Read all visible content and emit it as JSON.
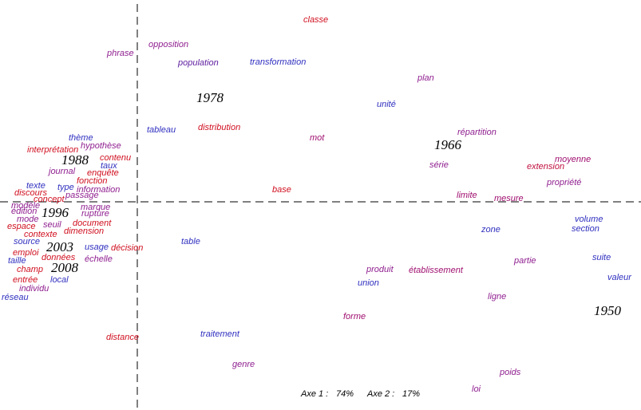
{
  "words": [
    {
      "label": "classe",
      "color": "#d01020"
    },
    {
      "label": "opposition",
      "color": "#902090"
    },
    {
      "label": "phrase",
      "color": "#902090"
    },
    {
      "label": "population",
      "color": "#6020a0"
    },
    {
      "label": "transformation",
      "color": "#3030c0"
    },
    {
      "label": "plan",
      "color": "#902090"
    },
    {
      "label": "unité",
      "color": "#3030c0"
    },
    {
      "label": "tableau",
      "color": "#3030c0"
    },
    {
      "label": "distribution",
      "color": "#d01020"
    },
    {
      "label": "mot",
      "color": "#a01070"
    },
    {
      "label": "répartition",
      "color": "#902090"
    },
    {
      "label": "thème",
      "color": "#3030c0"
    },
    {
      "label": "hypothèse",
      "color": "#902090"
    },
    {
      "label": "interprétation",
      "color": "#d01020"
    },
    {
      "label": "contenu",
      "color": "#d01020"
    },
    {
      "label": "taux",
      "color": "#3030c0"
    },
    {
      "label": "moyenne",
      "color": "#a01070"
    },
    {
      "label": "série",
      "color": "#902090"
    },
    {
      "label": "extension",
      "color": "#c01040"
    },
    {
      "label": "journal",
      "color": "#902090"
    },
    {
      "label": "enquête",
      "color": "#d01020"
    },
    {
      "label": "fonction",
      "color": "#d01020"
    },
    {
      "label": "propriété",
      "color": "#902090"
    },
    {
      "label": "texte",
      "color": "#3030c0"
    },
    {
      "label": "type",
      "color": "#3030c0"
    },
    {
      "label": "information",
      "color": "#902090"
    },
    {
      "label": "base",
      "color": "#d01020"
    },
    {
      "label": "discours",
      "color": "#d01020"
    },
    {
      "label": "passage",
      "color": "#902090"
    },
    {
      "label": "limite",
      "color": "#a01070"
    },
    {
      "label": "concept",
      "color": "#d01020"
    },
    {
      "label": "mesure",
      "color": "#a01070"
    },
    {
      "label": "modèle",
      "color": "#902090"
    },
    {
      "label": "marque",
      "color": "#902090"
    },
    {
      "label": "édition",
      "color": "#902090"
    },
    {
      "label": "rupture",
      "color": "#902090"
    },
    {
      "label": "mode",
      "color": "#902090"
    },
    {
      "label": "volume",
      "color": "#3030c0"
    },
    {
      "label": "document",
      "color": "#d01020"
    },
    {
      "label": "seuil",
      "color": "#902090"
    },
    {
      "label": "espace",
      "color": "#d01020"
    },
    {
      "label": "zone",
      "color": "#3030c0"
    },
    {
      "label": "dimension",
      "color": "#d01020"
    },
    {
      "label": "section",
      "color": "#3030c0"
    },
    {
      "label": "contexte",
      "color": "#d01020"
    },
    {
      "label": "table",
      "color": "#3030c0"
    },
    {
      "label": "source",
      "color": "#3030c0"
    },
    {
      "label": "usage",
      "color": "#3030c0"
    },
    {
      "label": "décision",
      "color": "#d01020"
    },
    {
      "label": "emploi",
      "color": "#d01020"
    },
    {
      "label": "données",
      "color": "#d01020"
    },
    {
      "label": "suite",
      "color": "#3030c0"
    },
    {
      "label": "échelle",
      "color": "#902090"
    },
    {
      "label": "partie",
      "color": "#902090"
    },
    {
      "label": "taille",
      "color": "#3030c0"
    },
    {
      "label": "champ",
      "color": "#d01020"
    },
    {
      "label": "établissement",
      "color": "#a01070"
    },
    {
      "label": "produit",
      "color": "#902090"
    },
    {
      "label": "valeur",
      "color": "#3030c0"
    },
    {
      "label": "entrée",
      "color": "#d01020"
    },
    {
      "label": "local",
      "color": "#3030c0"
    },
    {
      "label": "union",
      "color": "#3030c0"
    },
    {
      "label": "individu",
      "color": "#902090"
    },
    {
      "label": "ligne",
      "color": "#902090"
    },
    {
      "label": "réseau",
      "color": "#3030c0"
    },
    {
      "label": "forme",
      "color": "#a01070"
    },
    {
      "label": "traitement",
      "color": "#3030c0"
    },
    {
      "label": "distance",
      "color": "#d01020"
    },
    {
      "label": "genre",
      "color": "#902090"
    },
    {
      "label": "poids",
      "color": "#902090"
    },
    {
      "label": "loi",
      "color": "#902090"
    }
  ],
  "years": [
    "1978",
    "1966",
    "1988",
    "1996",
    "2003",
    "2008",
    "1950"
  ],
  "footer": {
    "axis1": "Axe 1 :",
    "axis1_value": "74%",
    "axis2": "Axe 2 :",
    "axis2_value": "17%"
  }
}
